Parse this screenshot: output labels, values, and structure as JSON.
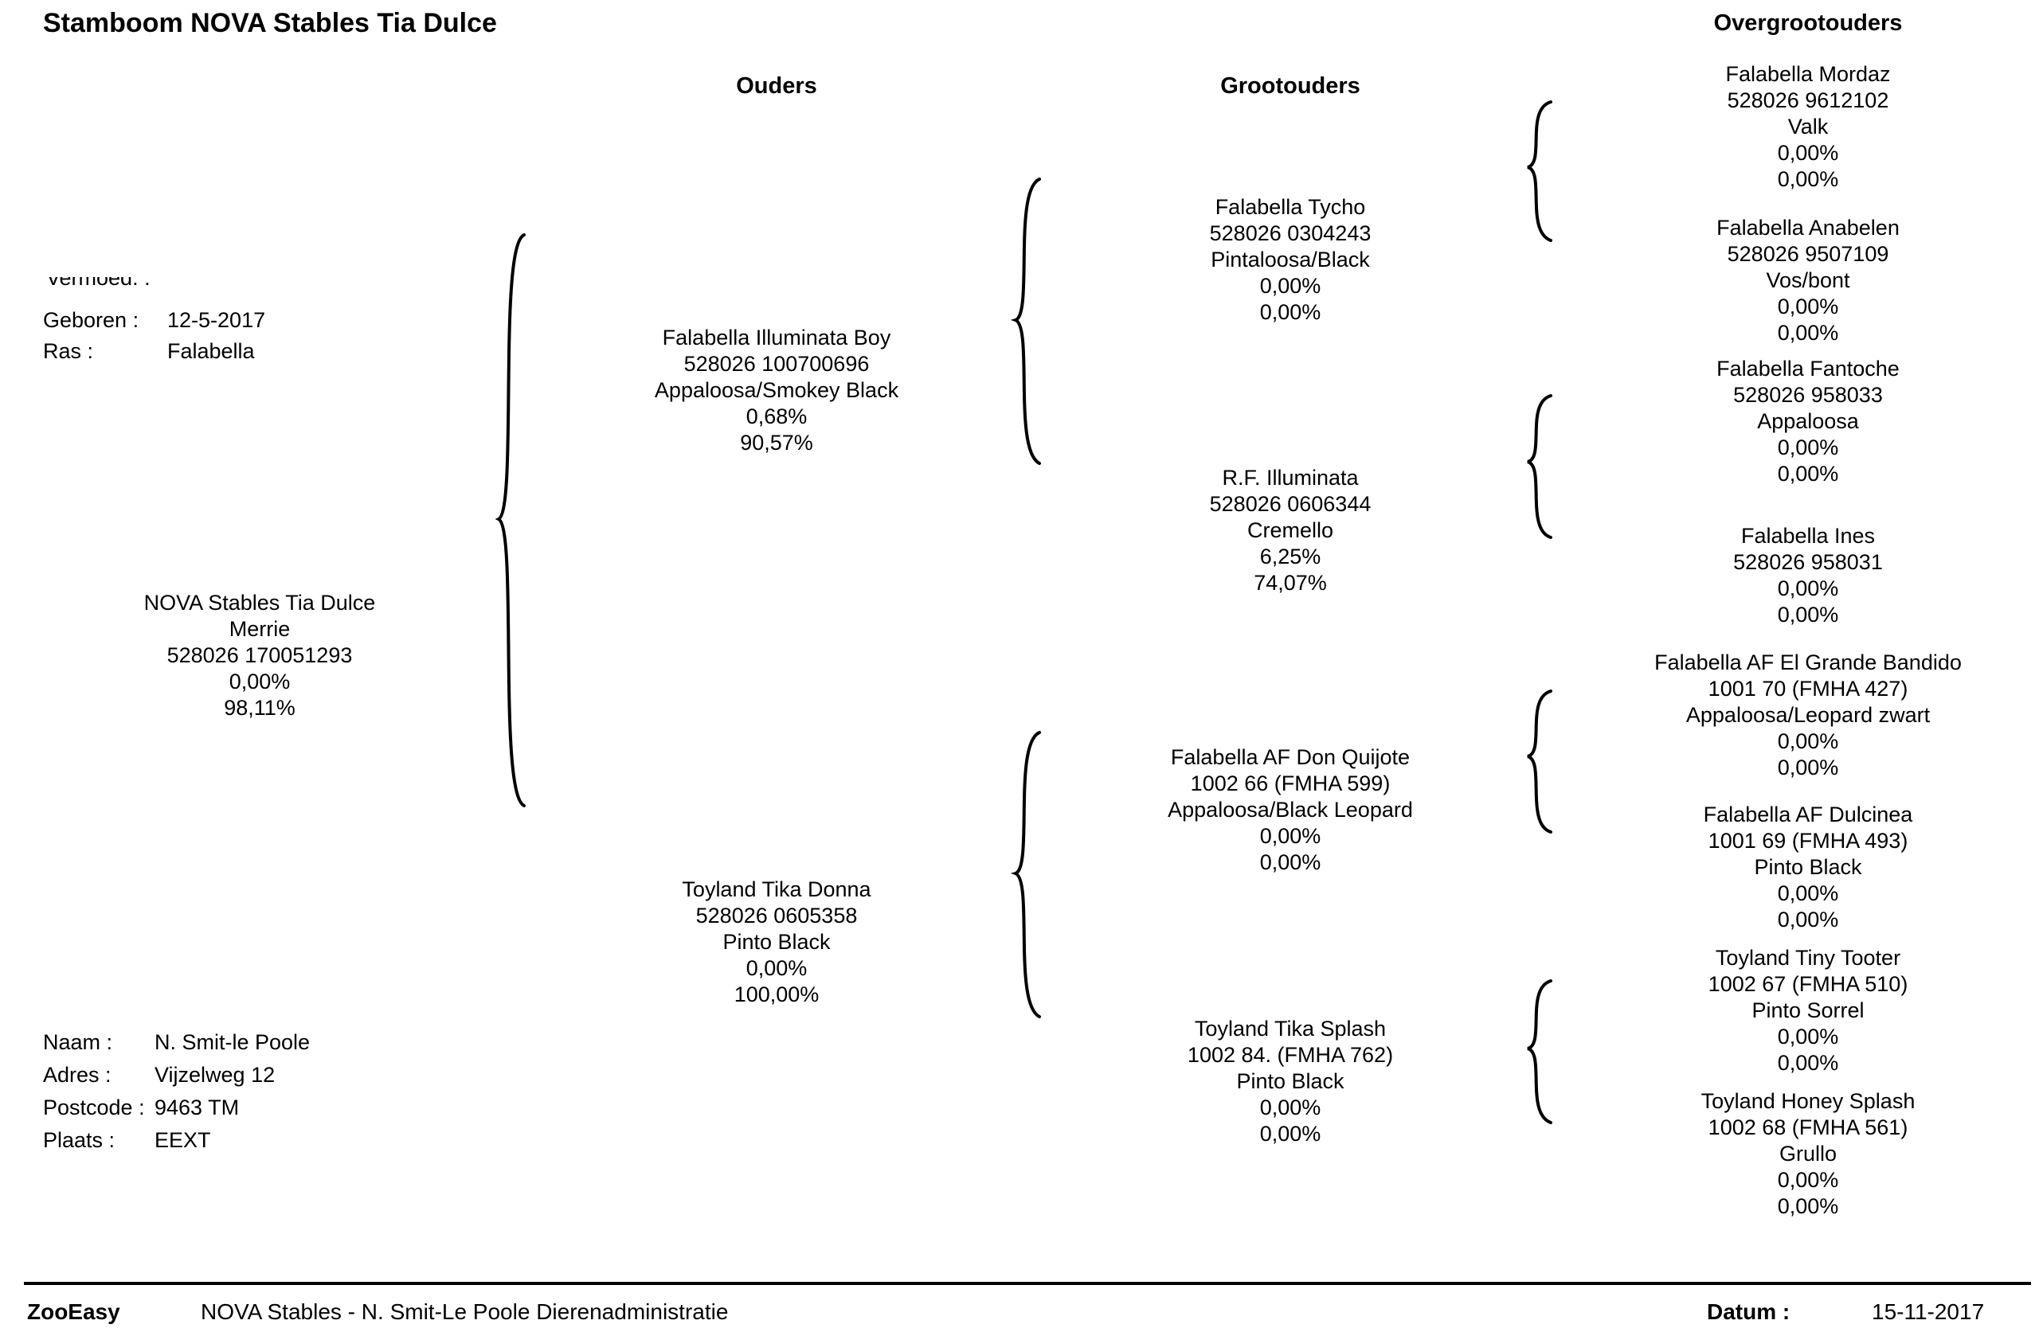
{
  "title": "Stamboom NOVA Stables Tia Dulce",
  "columns": {
    "parents": "Ouders",
    "grandparents": "Grootouders",
    "great_grandparents": "Overgrootouders"
  },
  "subject": {
    "cut_label": "Vermoed. :",
    "born_label": "Geboren :",
    "born_value": "12-5-2017",
    "breed_label": "Ras :",
    "breed_value": "Falabella",
    "name": "NOVA Stables Tia Dulce",
    "sex": "Merrie",
    "id": "528026 170051293",
    "inbreeding": "0,00%",
    "completeness": "98,11%"
  },
  "owner": {
    "name_label": "Naam :",
    "name_value": "N.  Smit-le Poole",
    "address_label": "Adres :",
    "address_value": "Vijzelweg 12",
    "postcode_label": "Postcode :",
    "postcode_value": "9463 TM",
    "city_label": "Plaats :",
    "city_value": "EEXT"
  },
  "parents": [
    {
      "name": "Falabella Illuminata Boy",
      "id": "528026 100700696",
      "color": "Appaloosa/Smokey Black",
      "inbreeding": "0,68%",
      "completeness": "90,57%"
    },
    {
      "name": "Toyland Tika Donna",
      "id": "528026 0605358",
      "color": "Pinto Black",
      "inbreeding": "0,00%",
      "completeness": "100,00%"
    }
  ],
  "grandparents": [
    {
      "name": "Falabella Tycho",
      "id": "528026 0304243",
      "color": "Pintaloosa/Black",
      "inbreeding": "0,00%",
      "completeness": "0,00%"
    },
    {
      "name": "R.F. Illuminata",
      "id": "528026 0606344",
      "color": "Cremello",
      "inbreeding": "6,25%",
      "completeness": "74,07%"
    },
    {
      "name": "Falabella AF Don Quijote",
      "id": "1002 66 (FMHA 599)",
      "color": "Appaloosa/Black Leopard",
      "inbreeding": "0,00%",
      "completeness": "0,00%"
    },
    {
      "name": "Toyland Tika Splash",
      "id": "1002 84. (FMHA 762)",
      "color": "Pinto Black",
      "inbreeding": "0,00%",
      "completeness": "0,00%"
    }
  ],
  "great_grandparents": [
    {
      "name": "Falabella Mordaz",
      "id": "528026 9612102",
      "color": "Valk",
      "inbreeding": "0,00%",
      "completeness": "0,00%"
    },
    {
      "name": "Falabella Anabelen",
      "id": "528026 9507109",
      "color": "Vos/bont",
      "inbreeding": "0,00%",
      "completeness": "0,00%"
    },
    {
      "name": "Falabella Fantoche",
      "id": "528026 958033",
      "color": "Appaloosa",
      "inbreeding": "0,00%",
      "completeness": "0,00%"
    },
    {
      "name": "Falabella Ines",
      "id": "528026 958031",
      "color": "",
      "inbreeding": "0,00%",
      "completeness": "0,00%"
    },
    {
      "name": "Falabella AF El Grande Bandido",
      "id": "1001 70 (FMHA 427)",
      "color": "Appaloosa/Leopard zwart",
      "inbreeding": "0,00%",
      "completeness": "0,00%"
    },
    {
      "name": "Falabella AF Dulcinea",
      "id": "1001 69 (FMHA 493)",
      "color": "Pinto Black",
      "inbreeding": "0,00%",
      "completeness": "0,00%"
    },
    {
      "name": "Toyland Tiny Tooter",
      "id": "1002 67 (FMHA 510)",
      "color": "Pinto Sorrel",
      "inbreeding": "0,00%",
      "completeness": "0,00%"
    },
    {
      "name": "Toyland Honey Splash",
      "id": "1002 68 (FMHA 561)",
      "color": "Grullo",
      "inbreeding": "0,00%",
      "completeness": "0,00%"
    }
  ],
  "footer": {
    "brand": "ZooEasy",
    "org": "NOVA Stables - N. Smit-Le Poole Dierenadministratie",
    "date_label": "Datum :",
    "date_value": "15-11-2017"
  }
}
